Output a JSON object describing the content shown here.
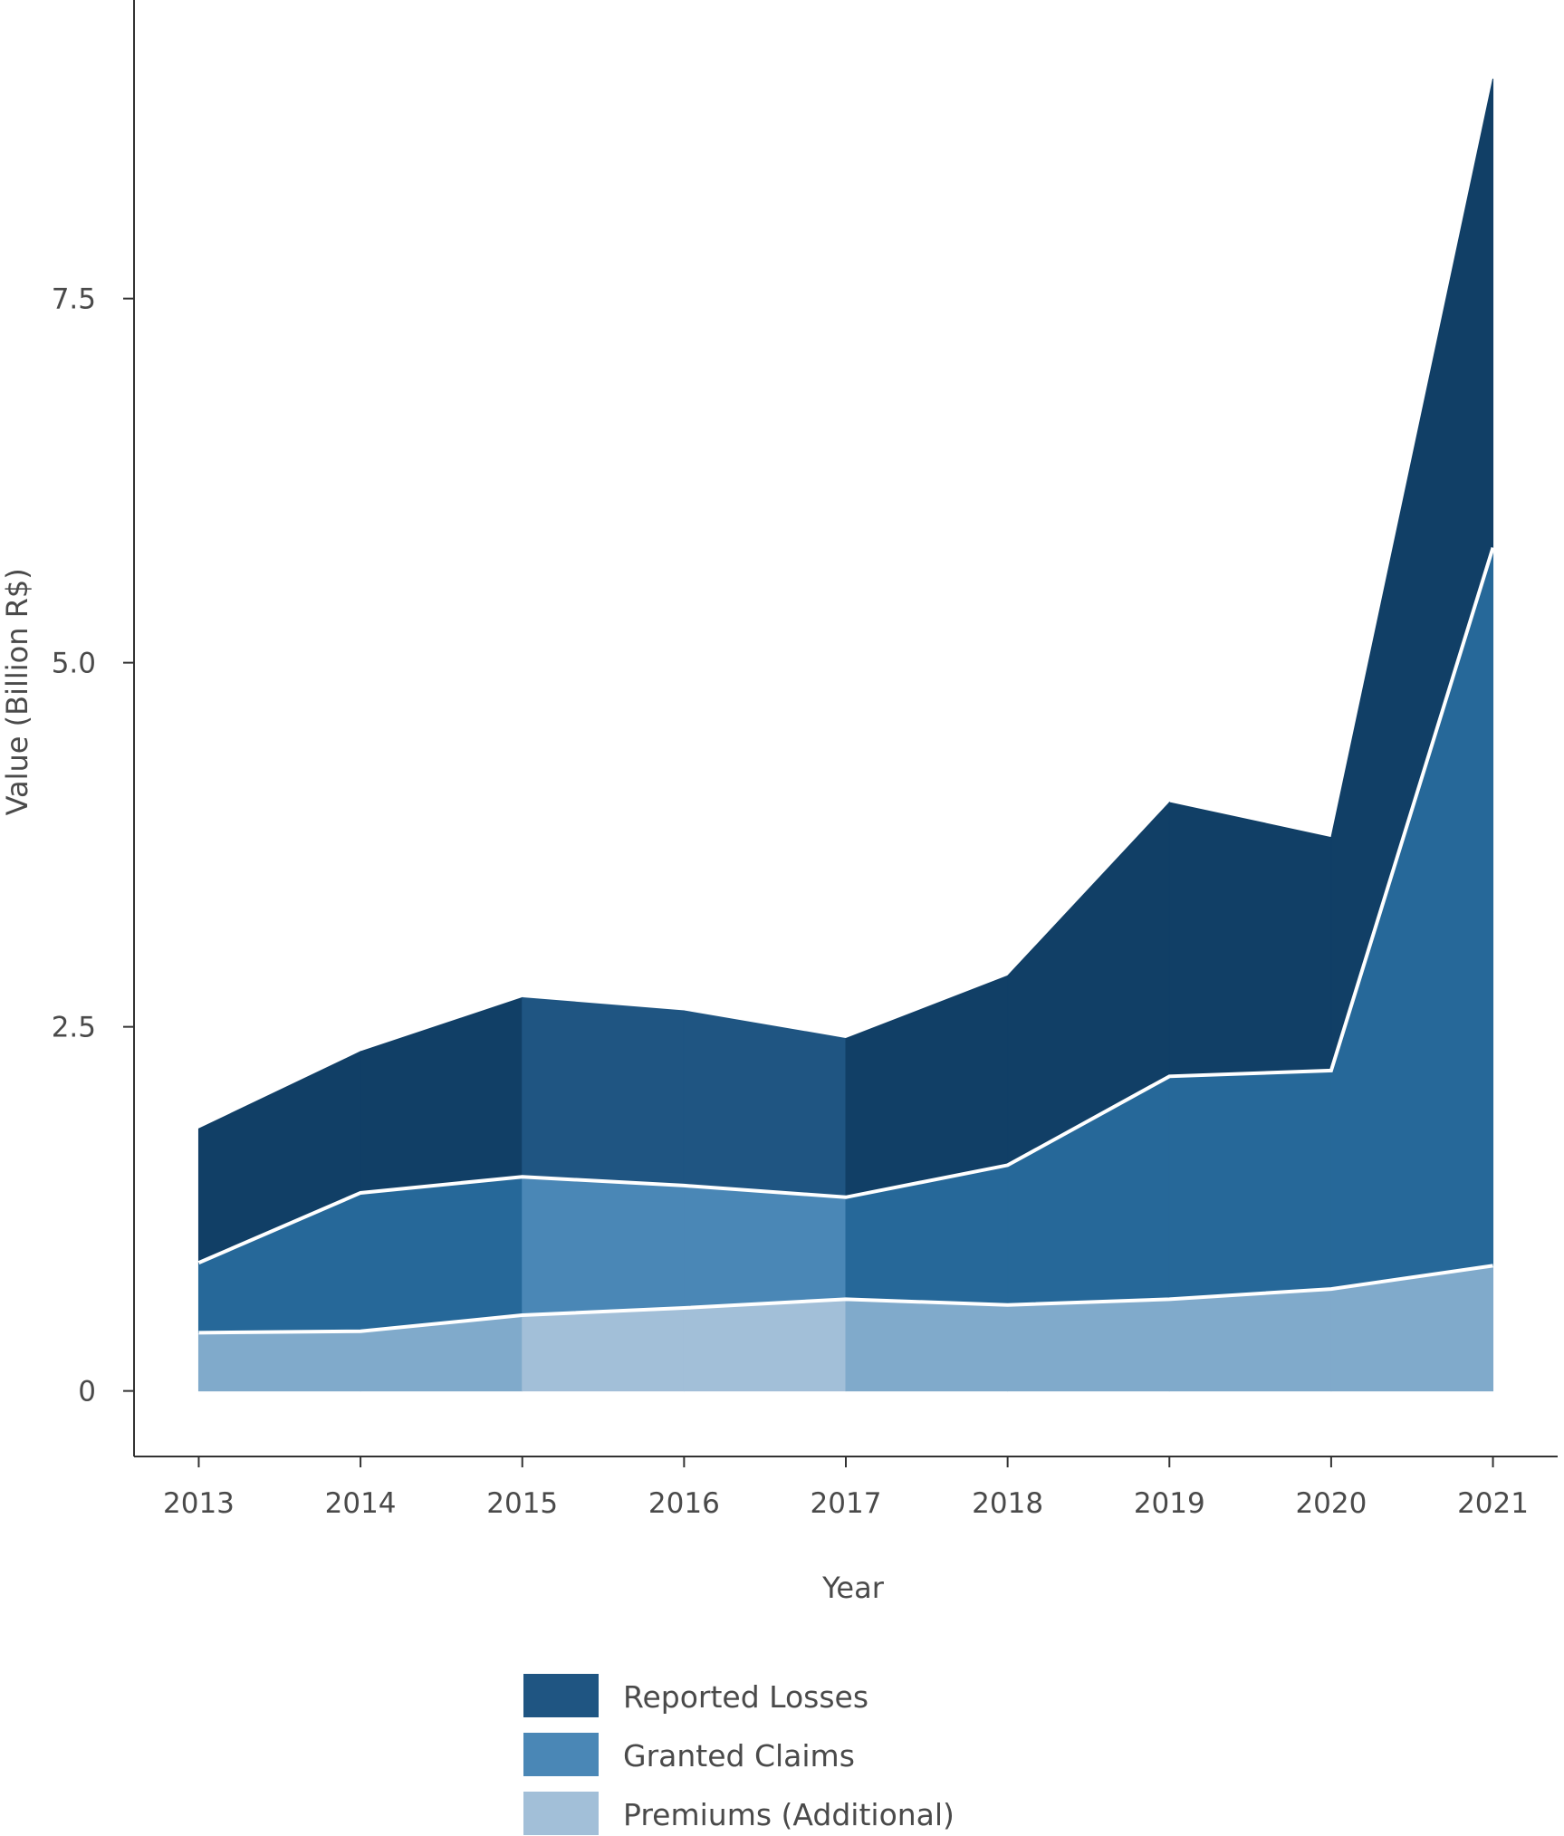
{
  "chart_data": {
    "type": "area",
    "stacked": true,
    "xlabel": "Year",
    "ylabel": "Value (Billion R$)",
    "x": [
      2013,
      2014,
      2015,
      2016,
      2017,
      2018,
      2019,
      2020,
      2021
    ],
    "x_tick_labels": [
      "2013",
      "2014",
      "2015",
      "2016",
      "2017",
      "2018",
      "2019",
      "2020",
      "2021"
    ],
    "y_ticks": [
      0,
      2.5,
      5.0,
      7.5
    ],
    "y_tick_labels": [
      "0",
      "2.5",
      "5.0",
      "7.5"
    ],
    "ylim": [
      -0.45,
      9.55
    ],
    "xlim": [
      2012.6,
      2021.4
    ],
    "grid": false,
    "legend_position": "bottom-center",
    "series": [
      {
        "name": "Premiums (Additional)",
        "color": "#a2bfd8",
        "values": [
          0.4,
          0.41,
          0.52,
          0.57,
          0.63,
          0.59,
          0.63,
          0.7,
          0.86
        ]
      },
      {
        "name": "Granted Claims",
        "color": "#4a87b6",
        "values": [
          0.48,
          0.95,
          0.95,
          0.84,
          0.7,
          0.96,
          1.53,
          1.5,
          4.93
        ]
      },
      {
        "name": "Reported Losses",
        "color": "#1f5582",
        "values": [
          0.92,
          0.97,
          1.23,
          1.2,
          1.09,
          1.3,
          1.88,
          1.6,
          3.22
        ]
      }
    ],
    "highlight_years": [
      2015,
      2016,
      2017
    ],
    "shade_colors": {
      "normal": [
        "#80aacb",
        "#266899",
        "#113f66"
      ],
      "highlight": [
        "#a2bfd8",
        "#4a87b6",
        "#1f5582"
      ]
    },
    "legend": [
      {
        "label": "Reported Losses",
        "color": "#1f5582"
      },
      {
        "label": "Granted Claims",
        "color": "#4a87b6"
      },
      {
        "label": "Premiums (Additional)",
        "color": "#a2bfd8"
      }
    ]
  }
}
